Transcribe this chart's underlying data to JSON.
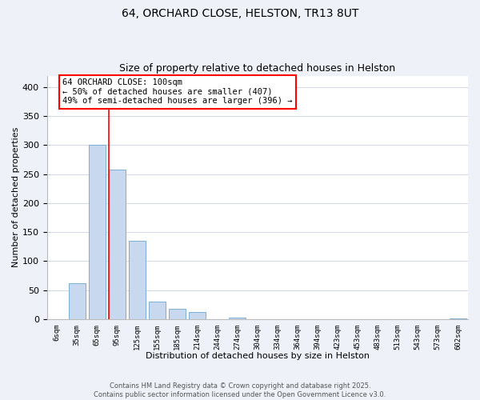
{
  "title": "64, ORCHARD CLOSE, HELSTON, TR13 8UT",
  "subtitle": "Size of property relative to detached houses in Helston",
  "xlabel": "Distribution of detached houses by size in Helston",
  "ylabel": "Number of detached properties",
  "bar_labels": [
    "6sqm",
    "35sqm",
    "65sqm",
    "95sqm",
    "125sqm",
    "155sqm",
    "185sqm",
    "214sqm",
    "244sqm",
    "274sqm",
    "304sqm",
    "334sqm",
    "364sqm",
    "394sqm",
    "423sqm",
    "453sqm",
    "483sqm",
    "513sqm",
    "543sqm",
    "573sqm",
    "602sqm"
  ],
  "bar_values": [
    0,
    62,
    300,
    258,
    135,
    30,
    17,
    12,
    0,
    3,
    0,
    0,
    0,
    0,
    0,
    0,
    0,
    0,
    0,
    0,
    1
  ],
  "bar_color": "#c8d9ef",
  "bar_edge_color": "#7aafd6",
  "ylim": [
    0,
    420
  ],
  "yticks": [
    0,
    50,
    100,
    150,
    200,
    250,
    300,
    350,
    400
  ],
  "red_line_index": 3,
  "annotation_title": "64 ORCHARD CLOSE: 100sqm",
  "annotation_line1": "← 50% of detached houses are smaller (407)",
  "annotation_line2": "49% of semi-detached houses are larger (396) →",
  "footer1": "Contains HM Land Registry data © Crown copyright and database right 2025.",
  "footer2": "Contains public sector information licensed under the Open Government Licence v3.0.",
  "bg_color": "#eef2f8",
  "plot_bg_color": "#ffffff",
  "grid_color": "#d0d8e8"
}
